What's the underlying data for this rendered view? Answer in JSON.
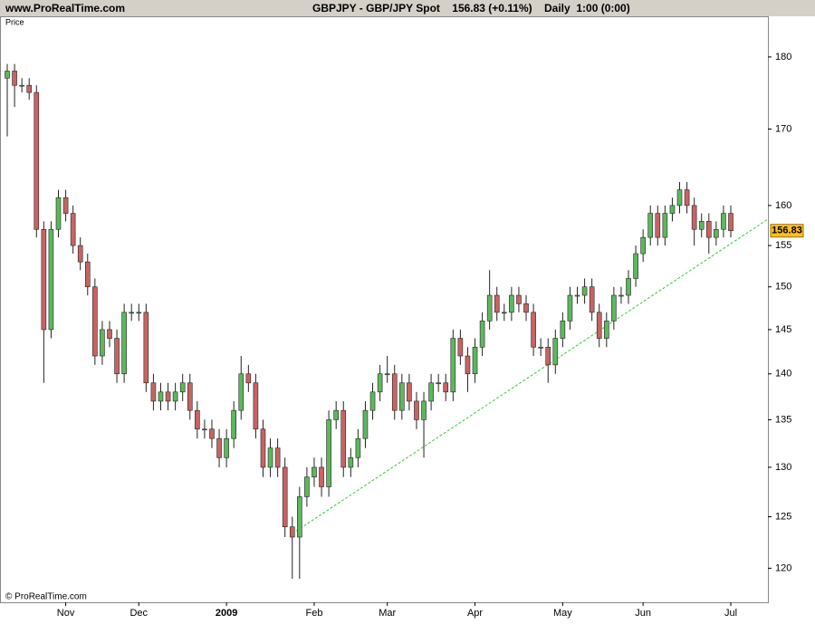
{
  "chart_data": {
    "type": "candlestick",
    "site": "www.ProRealTime.com",
    "title": "GBPJPY - GBP/JPY Spot    156.83 (+0.11%)    Daily  1:00 (0:00)",
    "y_label": "Price",
    "copyright": "© ProRealTime.com",
    "categories": [
      null,
      null,
      null,
      null,
      null,
      null,
      null,
      null,
      "Nov",
      null,
      null,
      null,
      null,
      null,
      null,
      null,
      null,
      null,
      "Dec",
      null,
      null,
      null,
      null,
      null,
      null,
      null,
      null,
      null,
      null,
      null,
      "2009",
      null,
      null,
      null,
      null,
      null,
      null,
      null,
      null,
      null,
      null,
      null,
      "Feb",
      null,
      null,
      null,
      null,
      null,
      null,
      null,
      null,
      null,
      "Mar",
      null,
      null,
      null,
      null,
      null,
      null,
      null,
      null,
      null,
      null,
      null,
      "Apr",
      null,
      null,
      null,
      null,
      null,
      null,
      null,
      null,
      null,
      null,
      null,
      "May",
      null,
      null,
      null,
      null,
      null,
      null,
      null,
      null,
      null,
      null,
      "Jun",
      null,
      null,
      null,
      null,
      null,
      null,
      null,
      null,
      null,
      null,
      null,
      "Jul"
    ],
    "open": [
      177,
      178,
      176,
      176,
      175,
      157,
      145,
      157,
      161,
      159,
      155,
      153,
      150,
      142,
      145,
      144,
      140,
      147,
      147,
      147,
      139,
      137,
      138,
      137,
      138,
      139,
      136,
      134,
      134,
      133,
      131,
      133,
      136,
      140,
      139,
      134,
      130,
      132,
      130,
      124,
      123,
      127,
      129,
      130,
      128,
      135,
      136,
      130,
      131,
      133,
      136,
      138,
      140,
      140,
      136,
      139,
      137,
      135,
      137,
      139,
      139,
      138,
      144,
      142,
      140,
      143,
      146,
      149,
      147,
      147,
      149,
      148,
      147,
      143,
      143,
      141,
      144,
      146,
      149,
      149,
      150,
      147,
      144,
      146,
      149,
      149,
      151,
      154,
      156,
      159,
      156,
      159,
      160,
      162,
      160,
      157,
      158,
      156,
      157,
      159
    ],
    "high": [
      179,
      179,
      177,
      177,
      176,
      158,
      158,
      162,
      162,
      160,
      156,
      154,
      151,
      146,
      146,
      145,
      148,
      148,
      148,
      148,
      140,
      139,
      139,
      139,
      140,
      140,
      137,
      135,
      135,
      134,
      134,
      137,
      142,
      141,
      140,
      135,
      133,
      133,
      131,
      125,
      128,
      130,
      131,
      131,
      136,
      137,
      137,
      132,
      134,
      137,
      139,
      141,
      142,
      141,
      140,
      140,
      138,
      138,
      140,
      140,
      140,
      145,
      145,
      143,
      144,
      147,
      152,
      150,
      148,
      150,
      150,
      149,
      148,
      144,
      144,
      145,
      147,
      150,
      150,
      151,
      151,
      148,
      147,
      150,
      150,
      152,
      155,
      157,
      160,
      160,
      160,
      161,
      163,
      163,
      161,
      159,
      159,
      158,
      160,
      160
    ],
    "low": [
      169,
      173,
      175,
      174,
      156,
      139,
      144,
      156,
      158,
      154,
      152,
      149,
      141,
      141,
      143,
      139,
      139,
      146,
      146,
      138,
      136,
      136,
      136,
      136,
      137,
      135,
      133,
      133,
      132,
      130,
      130,
      132,
      135,
      138,
      133,
      129,
      129,
      129,
      123,
      119,
      119,
      126,
      128,
      127,
      127,
      134,
      129,
      129,
      130,
      132,
      135,
      137,
      139,
      135,
      135,
      136,
      134,
      131,
      136,
      138,
      137,
      137,
      141,
      138,
      139,
      142,
      145,
      146,
      146,
      146,
      147,
      146,
      142,
      142,
      139,
      140,
      143,
      145,
      148,
      148,
      146,
      143,
      143,
      145,
      148,
      148,
      150,
      153,
      155,
      155,
      155,
      158,
      159,
      159,
      155,
      156,
      154,
      155,
      156,
      156
    ],
    "close": [
      178,
      176,
      176,
      175,
      157,
      145,
      157,
      161,
      159,
      155,
      153,
      150,
      142,
      145,
      144,
      140,
      147,
      147,
      147,
      139,
      137,
      138,
      137,
      138,
      139,
      136,
      134,
      134,
      133,
      131,
      133,
      136,
      140,
      139,
      134,
      130,
      132,
      130,
      124,
      123,
      127,
      129,
      130,
      128,
      135,
      136,
      130,
      131,
      133,
      136,
      138,
      140,
      140,
      136,
      139,
      137,
      135,
      137,
      139,
      139,
      138,
      144,
      142,
      140,
      143,
      146,
      149,
      147,
      147,
      149,
      148,
      147,
      143,
      143,
      141,
      144,
      146,
      149,
      149,
      150,
      147,
      144,
      146,
      149,
      149,
      151,
      154,
      156,
      159,
      156,
      159,
      160,
      162,
      160,
      157,
      158,
      156,
      157,
      159,
      156.83
    ],
    "up_color": "#5cb85c",
    "down_color": "#c86464",
    "log_y": true,
    "ylim": [
      116.8,
      185.9
    ],
    "yticks": [
      120,
      125,
      130,
      135,
      140,
      145,
      150,
      155,
      160,
      170,
      180
    ]
  }
}
